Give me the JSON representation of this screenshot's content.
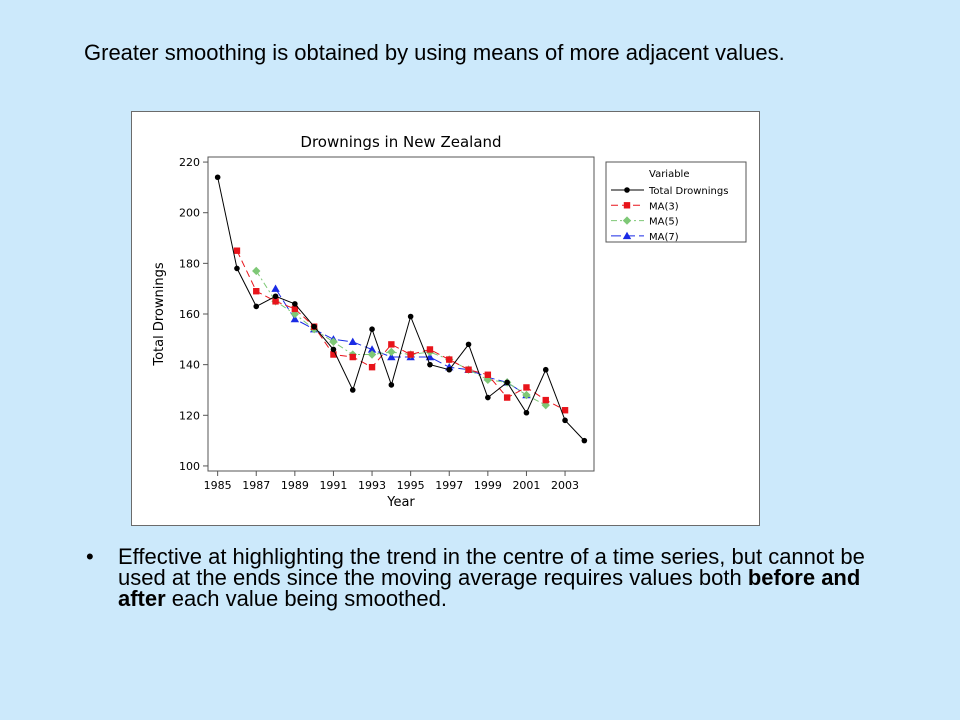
{
  "slide": {
    "heading": "Greater smoothing is obtained by using means of more adjacent values.",
    "bullet_marker": "•",
    "bullet_text_1": "Effective at highlighting the trend in the centre of a time series, but cannot be used at the ends since the moving average requires values both ",
    "bullet_bold": "before and after",
    "bullet_text_2": " each value being smoothed."
  },
  "chart_data": {
    "type": "line",
    "title": "Drownings in New Zealand",
    "xlabel": "Year",
    "ylabel": "Total Drownings",
    "xlim": [
      1984.5,
      2004.5
    ],
    "ylim": [
      98,
      222
    ],
    "xticks": [
      1985,
      1987,
      1989,
      1991,
      1993,
      1995,
      1997,
      1999,
      2001,
      2003
    ],
    "yticks": [
      100,
      120,
      140,
      160,
      180,
      200,
      220
    ],
    "legend": {
      "title": "Variable",
      "position": "right"
    },
    "series": [
      {
        "name": "Total Drownings",
        "color": "#000000",
        "marker": "circle",
        "dash": "",
        "x": [
          1985,
          1986,
          1987,
          1988,
          1989,
          1990,
          1991,
          1992,
          1993,
          1994,
          1995,
          1996,
          1997,
          1998,
          1999,
          2000,
          2001,
          2002,
          2003,
          2004
        ],
        "y": [
          214,
          178,
          163,
          167,
          164,
          155,
          146,
          130,
          154,
          132,
          159,
          140,
          138,
          148,
          127,
          133,
          121,
          138,
          118,
          110
        ]
      },
      {
        "name": "MA(3)",
        "color": "#e8141b",
        "marker": "square",
        "dash": "7 4",
        "x": [
          1986,
          1987,
          1988,
          1989,
          1990,
          1991,
          1992,
          1993,
          1994,
          1995,
          1996,
          1997,
          1998,
          1999,
          2000,
          2001,
          2002,
          2003
        ],
        "y": [
          185,
          169,
          165,
          162,
          155,
          144,
          143,
          139,
          148,
          144,
          146,
          142,
          138,
          136,
          127,
          131,
          126,
          122
        ]
      },
      {
        "name": "MA(5)",
        "color": "#7ec876",
        "marker": "diamond",
        "dash": "6 3 2 3",
        "x": [
          1987,
          1988,
          1989,
          1990,
          1991,
          1992,
          1993,
          1994,
          1995,
          1996,
          1997,
          1998,
          1999,
          2000,
          2001,
          2002
        ],
        "y": [
          177,
          165,
          160,
          154,
          149,
          144,
          144,
          145,
          144,
          145,
          142,
          138,
          134,
          133,
          128,
          124
        ]
      },
      {
        "name": "MA(7)",
        "color": "#1a2be5",
        "marker": "triangle",
        "dash": "10 4",
        "x": [
          1988,
          1989,
          1990,
          1991,
          1992,
          1993,
          1994,
          1995,
          1996,
          1997,
          1998,
          1999,
          2000,
          2001
        ],
        "y": [
          170,
          158,
          154,
          150,
          149,
          146,
          143,
          143,
          143,
          139,
          138,
          135,
          133,
          128
        ]
      }
    ]
  }
}
